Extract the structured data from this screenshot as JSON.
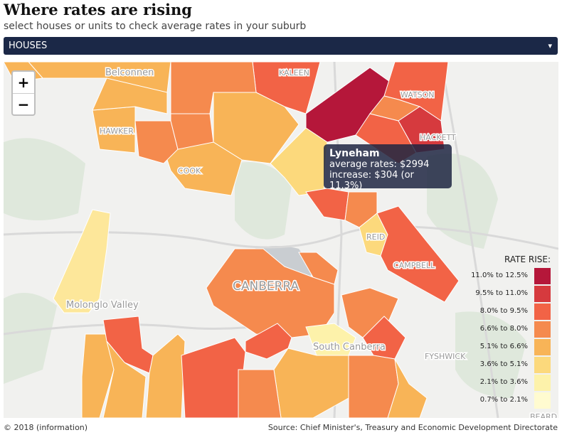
{
  "header": {
    "title": "Where rates are rising",
    "subtitle": "select houses or units to check average rates in your suburb",
    "dropdown": "HOUSES",
    "dropdown_arrow": "▾"
  },
  "zoom": {
    "in": "+",
    "out": "−"
  },
  "tooltip": {
    "suburb": "Lyneham",
    "line1": "average rates: $2994",
    "line2": "increase: $304 (or 11.3%)"
  },
  "legend": {
    "title": "RATE RISE:",
    "items": [
      "11.0% to 12.5%",
      "9.5% to 11.0%",
      "8.0% to 9.5%",
      "6.6% to 8.0%",
      "5.1% to 6.6%",
      "3.6% to 5.1%",
      "2.1% to 3.6%",
      "0.7% to 2.1%"
    ]
  },
  "map_labels": [
    "Belconnen",
    "KALEEN",
    "WATSON",
    "HAWKER",
    "COOK",
    "HACKETT",
    "REID",
    "CAMPBELL",
    "CANBERRA",
    "Molonglo Valley",
    "South Canberra",
    "FYSHWICK",
    "BEARD"
  ],
  "footer": {
    "left": "© 2018 (information)",
    "right": "Source: Chief Minister's, Treasury and Economic Development Directorate"
  }
}
